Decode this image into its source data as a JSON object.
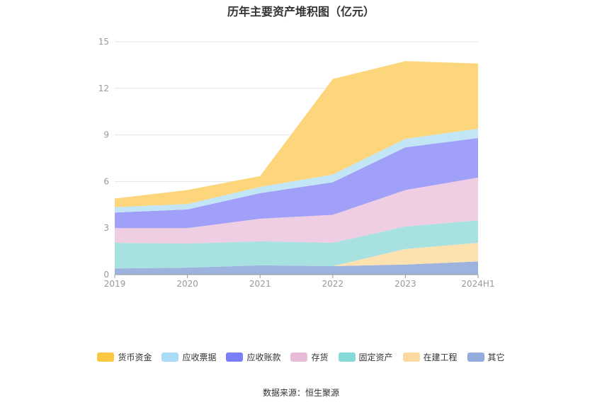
{
  "chart_data": {
    "type": "area",
    "stacked": true,
    "title": "历年主要资产堆积图（亿元）",
    "categories": [
      "2019",
      "2020",
      "2021",
      "2022",
      "2023",
      "2024H1"
    ],
    "yticks": [
      "0",
      "3",
      "6",
      "9",
      "12",
      "15"
    ],
    "ylim": [
      0,
      15
    ],
    "grid": true,
    "legend_position": "bottom",
    "series": [
      {
        "name": "其它",
        "color": "#9db3de",
        "values": [
          0.4,
          0.45,
          0.6,
          0.55,
          0.65,
          0.85
        ]
      },
      {
        "name": "在建工程",
        "color": "#fde2b0",
        "values": [
          0.0,
          0.0,
          0.0,
          0.0,
          1.0,
          1.2
        ]
      },
      {
        "name": "固定资产",
        "color": "#a8e2e0",
        "values": [
          1.65,
          1.55,
          1.55,
          1.5,
          1.45,
          1.45
        ]
      },
      {
        "name": "存货",
        "color": "#efcde2",
        "values": [
          0.95,
          1.0,
          1.45,
          1.8,
          2.35,
          2.75
        ]
      },
      {
        "name": "应收账款",
        "color": "#a0a0f8",
        "values": [
          1.0,
          1.2,
          1.65,
          2.1,
          2.75,
          2.55
        ]
      },
      {
        "name": "应收票据",
        "color": "#c2e6f6",
        "values": [
          0.35,
          0.35,
          0.4,
          0.5,
          0.55,
          0.6
        ]
      },
      {
        "name": "货币资金",
        "color": "#fdd57a",
        "values": [
          0.55,
          0.9,
          0.7,
          6.15,
          5.0,
          4.2
        ]
      }
    ],
    "legend": [
      {
        "name": "货币资金",
        "color": "#fcc742"
      },
      {
        "name": "应收票据",
        "color": "#a9ddf7"
      },
      {
        "name": "应收账款",
        "color": "#7b7ff7"
      },
      {
        "name": "存货",
        "color": "#e8bcd8"
      },
      {
        "name": "固定资产",
        "color": "#85d9d6"
      },
      {
        "name": "在建工程",
        "color": "#fdd9a0"
      },
      {
        "name": "其它",
        "color": "#93acde"
      }
    ]
  },
  "source": "数据来源：恒生聚源"
}
